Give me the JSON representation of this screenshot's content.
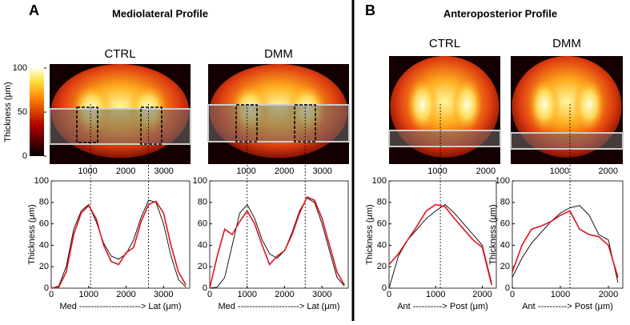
{
  "figure": {
    "panels": [
      {
        "label": "A",
        "title": "Mediolateral Profile"
      },
      {
        "label": "B",
        "title": "Anteroposterior Profile"
      }
    ],
    "colorbar": {
      "label": "Thickness (μm)",
      "ylim": [
        0,
        100
      ],
      "yticks": [
        100,
        50,
        0
      ]
    },
    "images": [
      {
        "title": "CTRL",
        "xlim": [
          0,
          3700
        ],
        "xticks": [
          1000,
          2000,
          3000
        ]
      },
      {
        "title": "DMM",
        "xlim": [
          0,
          3700
        ],
        "xticks": [
          1000,
          2000,
          3000
        ]
      },
      {
        "title": "CTRL",
        "xlim": [
          0,
          2300
        ],
        "xticks": [
          1000,
          2000
        ]
      },
      {
        "title": "DMM",
        "xlim": [
          0,
          2300
        ],
        "xticks": [
          1000,
          2000
        ]
      }
    ]
  },
  "chart_data": [
    {
      "type": "line",
      "ylabel": "Thickness (μm)",
      "xlabel": "Med ---------------------> Lat (μm)",
      "x": [
        0,
        200,
        400,
        600,
        800,
        1000,
        1200,
        1400,
        1600,
        1800,
        2000,
        2200,
        2400,
        2600,
        2800,
        3000,
        3200,
        3400,
        3600
      ],
      "xlim": [
        0,
        3700
      ],
      "xticks": [
        0,
        1000,
        2000,
        3000
      ],
      "ylim": [
        0,
        100
      ],
      "yticks": [
        0,
        20,
        40,
        60,
        80,
        100
      ],
      "vlines": [
        1050,
        2600
      ],
      "series": [
        {
          "color": "#000000",
          "values": [
            0,
            2,
            20,
            55,
            72,
            78,
            62,
            42,
            30,
            27,
            32,
            45,
            66,
            82,
            80,
            60,
            30,
            8,
            1
          ]
        },
        {
          "color": "#e0141e",
          "values": [
            0,
            1,
            15,
            50,
            70,
            77,
            65,
            40,
            25,
            22,
            33,
            38,
            62,
            78,
            81,
            70,
            40,
            15,
            3
          ]
        }
      ]
    },
    {
      "type": "line",
      "xlabel": "Med ---------------------> Lat (μm)",
      "x": [
        0,
        200,
        400,
        600,
        800,
        1000,
        1200,
        1400,
        1600,
        1800,
        2000,
        2200,
        2400,
        2600,
        2800,
        3000,
        3200,
        3400,
        3600
      ],
      "xlim": [
        0,
        3700
      ],
      "xticks": [
        0,
        1000,
        2000,
        3000
      ],
      "ylim": [
        0,
        100
      ],
      "yticks": [
        0,
        20,
        40,
        60,
        80,
        100
      ],
      "vlines": [
        1000,
        2550
      ],
      "series": [
        {
          "color": "#000000",
          "values": [
            0,
            1,
            10,
            40,
            70,
            78,
            65,
            45,
            32,
            28,
            35,
            52,
            72,
            84,
            80,
            60,
            35,
            10,
            2
          ]
        },
        {
          "color": "#e0141e",
          "values": [
            0,
            30,
            55,
            50,
            62,
            72,
            60,
            40,
            22,
            30,
            35,
            50,
            70,
            85,
            82,
            65,
            40,
            15,
            3
          ]
        }
      ]
    },
    {
      "type": "line",
      "ylabel": "Thickness (μm)",
      "xlabel": "Ant ----------> Post (μm)",
      "x": [
        0,
        200,
        400,
        600,
        800,
        1000,
        1200,
        1400,
        1600,
        1800,
        2000,
        2200
      ],
      "xlim": [
        0,
        2300
      ],
      "xticks": [
        0,
        1000,
        2000
      ],
      "ylim": [
        0,
        100
      ],
      "yticks": [
        0,
        20,
        40,
        60,
        80,
        100
      ],
      "vlines": [
        1100
      ],
      "series": [
        {
          "color": "#000000",
          "values": [
            0,
            30,
            45,
            55,
            65,
            72,
            78,
            70,
            60,
            50,
            40,
            5
          ]
        },
        {
          "color": "#e0141e",
          "values": [
            22,
            32,
            45,
            58,
            72,
            78,
            76,
            65,
            55,
            45,
            38,
            3
          ]
        }
      ]
    },
    {
      "type": "line",
      "ylabel": "Thickness (μm)",
      "xlabel": "Ant ----------> Post (μm)",
      "x": [
        0,
        200,
        400,
        600,
        800,
        1000,
        1200,
        1400,
        1600,
        1800,
        2000,
        2200
      ],
      "xlim": [
        0,
        2300
      ],
      "xticks": [
        0,
        1000,
        2000
      ],
      "ylim": [
        0,
        100
      ],
      "yticks": [
        0,
        20,
        40,
        60,
        80,
        100
      ],
      "vlines": [
        1200
      ],
      "series": [
        {
          "color": "#000000",
          "values": [
            10,
            28,
            42,
            52,
            62,
            70,
            75,
            77,
            68,
            50,
            45,
            5
          ]
        },
        {
          "color": "#e0141e",
          "values": [
            15,
            40,
            55,
            58,
            62,
            68,
            72,
            55,
            50,
            48,
            40,
            10
          ]
        }
      ]
    }
  ]
}
